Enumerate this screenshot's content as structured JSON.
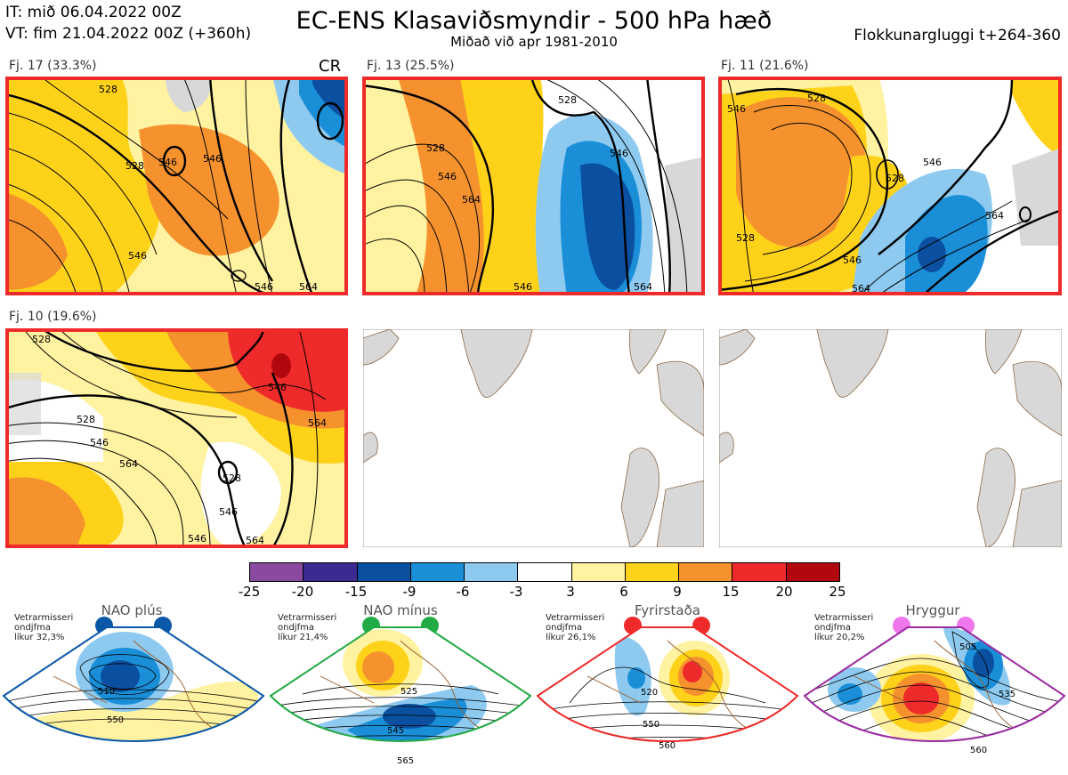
{
  "header": {
    "init_time": "IT: mið 06.04.2022 00Z",
    "valid_time": "VT: fim 21.04.2022 00Z  (+360h)",
    "title": "EC-ENS Klasaviðsmyndir - 500 hPa hæð",
    "subtitle": "Miðað við apr 1981-2010",
    "cluster_window": "Flokkunargluggi t+264-360"
  },
  "clusters": [
    {
      "label": "Fj. 17 (33.3%)",
      "tag": "CR",
      "contours": [
        "528",
        "528",
        "546",
        "546",
        "546",
        "564",
        "546"
      ],
      "highlight": "#ee2a2a"
    },
    {
      "label": "Fj. 13 (25.5%)",
      "tag": "",
      "contours": [
        "528",
        "528",
        "546",
        "564",
        "546",
        "564",
        "546"
      ],
      "highlight": "#ee2a2a"
    },
    {
      "label": "Fj. 11 (21.6%)",
      "tag": "",
      "contours": [
        "546",
        "528",
        "528",
        "528",
        "546",
        "564",
        "546",
        "564"
      ],
      "highlight": "#ee2a2a"
    },
    {
      "label": "Fj. 10 (19.6%)",
      "tag": "",
      "contours": [
        "528",
        "528",
        "546",
        "564",
        "546",
        "564",
        "546",
        "528",
        "546",
        "564"
      ],
      "highlight": "#ee2a2a"
    }
  ],
  "colorbar": {
    "labels": [
      "-25",
      "-20",
      "-15",
      "-9",
      "-6",
      "-3",
      "3",
      "6",
      "9",
      "15",
      "20",
      "25"
    ],
    "colors": [
      "#8a4aa0",
      "#3b2a8f",
      "#0b4fa0",
      "#1a8fd8",
      "#8ecaf0",
      "#ffffff",
      "#fff2a0",
      "#ffd21a",
      "#f5922e",
      "#ee2a2a",
      "#b0080e"
    ]
  },
  "regimes": [
    {
      "name": "NAO plús",
      "note_line1": "Vetrarmisseri",
      "note_line2": "ondjfma",
      "note_line3": "líkur 32,3%",
      "color": "#0a57a8",
      "contours": [
        "510",
        "550"
      ]
    },
    {
      "name": "NAO mínus",
      "note_line1": "Vetrarmisseri",
      "note_line2": "ondjfma",
      "note_line3": "líkur 21,4%",
      "color": "#22aa44",
      "contours": [
        "525",
        "545",
        "565"
      ]
    },
    {
      "name": "Fyrirstaða",
      "note_line1": "Vetrarmisseri",
      "note_line2": "ondjfma",
      "note_line3": "líkur 26,1%",
      "color": "#ee2a2a",
      "contours": [
        "520",
        "550",
        "560"
      ]
    },
    {
      "name": "Hryggur",
      "note_line1": "Vetrarmisseri",
      "note_line2": "ondjfma",
      "note_line3": "líkur 20,2%",
      "color": "#9a2aa0",
      "dot_color": "#ee77ee",
      "contours": [
        "505",
        "535",
        "560"
      ]
    }
  ]
}
